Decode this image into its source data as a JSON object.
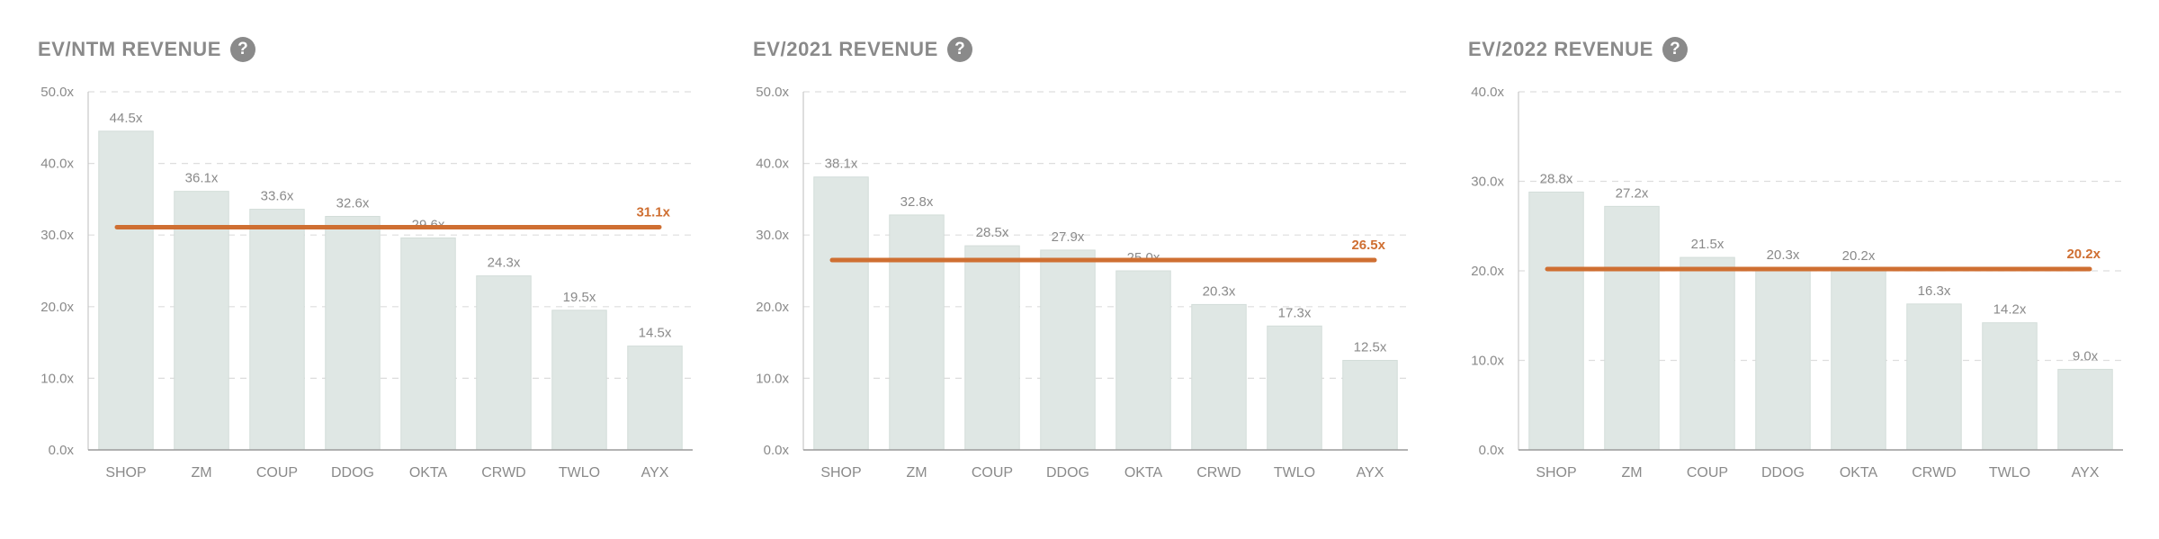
{
  "colors": {
    "bar": "#dfe7e4",
    "bar_stroke": "#d3ddd9",
    "avg_line": "#cf6f32",
    "grid": "#dddddd",
    "axis": "#c8c8c8",
    "text": "#8a8a8a"
  },
  "help_icon": {
    "name": "question-mark-icon",
    "glyph": "?"
  },
  "chart_data": [
    {
      "type": "bar",
      "title": "EV/NTM REVENUE",
      "categories": [
        "SHOP",
        "ZM",
        "COUP",
        "DDOG",
        "OKTA",
        "CRWD",
        "TWLO",
        "AYX"
      ],
      "values": [
        44.5,
        36.1,
        33.6,
        32.6,
        29.6,
        24.3,
        19.5,
        14.5
      ],
      "value_labels": [
        "44.5x",
        "36.1x",
        "33.6x",
        "32.6x",
        "29.6x",
        "24.3x",
        "19.5x",
        "14.5x"
      ],
      "average": 31.1,
      "average_label": "31.1x",
      "ylim": [
        0,
        50
      ],
      "yticks": [
        0,
        10,
        20,
        30,
        40,
        50
      ],
      "ytick_labels": [
        "0.0x",
        "10.0x",
        "20.0x",
        "30.0x",
        "40.0x",
        "50.0x"
      ],
      "grid": true
    },
    {
      "type": "bar",
      "title": "EV/2021 REVENUE",
      "categories": [
        "SHOP",
        "ZM",
        "COUP",
        "DDOG",
        "OKTA",
        "CRWD",
        "TWLO",
        "AYX"
      ],
      "values": [
        38.1,
        32.8,
        28.5,
        27.9,
        25.0,
        20.3,
        17.3,
        12.5
      ],
      "value_labels": [
        "38.1x",
        "32.8x",
        "28.5x",
        "27.9x",
        "25.0x",
        "20.3x",
        "17.3x",
        "12.5x"
      ],
      "average": 26.5,
      "average_label": "26.5x",
      "ylim": [
        0,
        50
      ],
      "yticks": [
        0,
        10,
        20,
        30,
        40,
        50
      ],
      "ytick_labels": [
        "0.0x",
        "10.0x",
        "20.0x",
        "30.0x",
        "40.0x",
        "50.0x"
      ],
      "grid": true
    },
    {
      "type": "bar",
      "title": "EV/2022 REVENUE",
      "categories": [
        "SHOP",
        "ZM",
        "COUP",
        "DDOG",
        "OKTA",
        "CRWD",
        "TWLO",
        "AYX"
      ],
      "values": [
        28.8,
        27.2,
        21.5,
        20.3,
        20.2,
        16.3,
        14.2,
        9.0
      ],
      "value_labels": [
        "28.8x",
        "27.2x",
        "21.5x",
        "20.3x",
        "20.2x",
        "16.3x",
        "14.2x",
        "9.0x"
      ],
      "average": 20.2,
      "average_label": "20.2x",
      "ylim": [
        0,
        40
      ],
      "yticks": [
        0,
        10,
        20,
        30,
        40
      ],
      "ytick_labels": [
        "0.0x",
        "10.0x",
        "20.0x",
        "30.0x",
        "40.0x"
      ],
      "grid": true
    }
  ]
}
